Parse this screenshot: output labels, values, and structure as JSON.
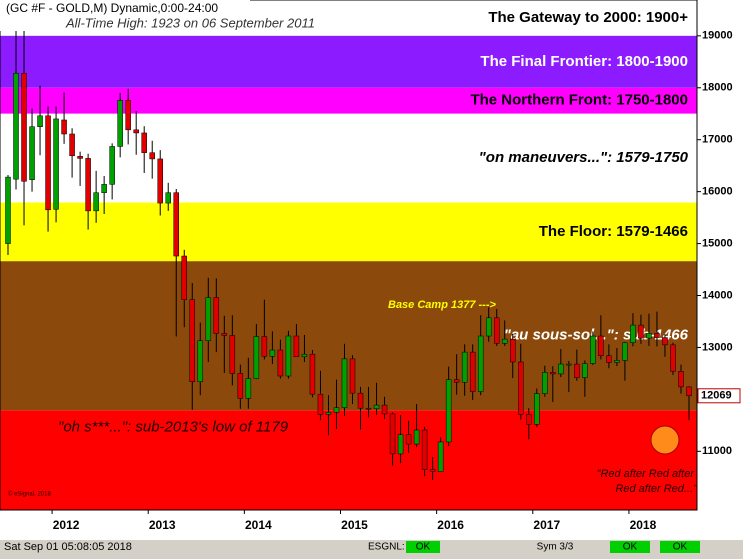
{
  "chart_data": {
    "type": "candlestick",
    "header": "(GC #F - GOLD,M) Dynamic,0:00-24:00",
    "subtitle": "All-Time High:  1923 on 06 September 2011",
    "categories": [
      null,
      null,
      null,
      null,
      null,
      null,
      "2012",
      null,
      null,
      null,
      null,
      null,
      null,
      null,
      null,
      null,
      null,
      null,
      "2013",
      null,
      null,
      null,
      null,
      null,
      null,
      null,
      null,
      null,
      null,
      null,
      "2014",
      null,
      null,
      null,
      null,
      null,
      null,
      null,
      null,
      null,
      null,
      null,
      "2015",
      null,
      null,
      null,
      null,
      null,
      null,
      null,
      null,
      null,
      null,
      null,
      "2016",
      null,
      null,
      null,
      null,
      null,
      null,
      null,
      null,
      null,
      null,
      null,
      "2017",
      null,
      null,
      null,
      null,
      null,
      null,
      null,
      null,
      null,
      null,
      null,
      "2018",
      null,
      null,
      null,
      null,
      null,
      null,
      null
    ],
    "open": [
      1500,
      1624,
      1828,
      1623,
      1725,
      1746,
      1566,
      1738,
      1711,
      1668,
      1664,
      1563,
      1598,
      1614,
      1687,
      1776,
      1719,
      1713,
      1675,
      1663,
      1578,
      1598,
      1476,
      1392,
      1234,
      1313,
      1396,
      1327,
      1323,
      1250,
      1202,
      1240,
      1321,
      1283,
      1295,
      1245,
      1322,
      1282,
      1287,
      1210,
      1171,
      1175,
      1184,
      1278,
      1212,
      1183,
      1182,
      1189,
      1172,
      1095,
      1132,
      1114,
      1141,
      1065,
      1061,
      1118,
      1238,
      1233,
      1291,
      1215,
      1322,
      1357,
      1308,
      1316,
      1272,
      1171,
      1152,
      1211,
      1252,
      1249,
      1268,
      1268,
      1242,
      1269,
      1322,
      1284,
      1271,
      1275,
      1309,
      1343,
      1318,
      1327,
      1319,
      1305,
      1254,
      1224
    ],
    "high": [
      1632,
      1911,
      1923,
      1760,
      1804,
      1764,
      1764,
      1791,
      1722,
      1677,
      1673,
      1640,
      1630,
      1693,
      1790,
      1798,
      1755,
      1726,
      1698,
      1680,
      1617,
      1605,
      1488,
      1424,
      1348,
      1434,
      1433,
      1361,
      1362,
      1267,
      1280,
      1345,
      1392,
      1331,
      1315,
      1332,
      1345,
      1324,
      1295,
      1255,
      1208,
      1238,
      1307,
      1285,
      1224,
      1224,
      1232,
      1205,
      1175,
      1170,
      1159,
      1191,
      1147,
      1089,
      1127,
      1263,
      1287,
      1306,
      1306,
      1362,
      1377,
      1374,
      1352,
      1326,
      1307,
      1183,
      1221,
      1265,
      1264,
      1297,
      1274,
      1296,
      1275,
      1331,
      1362,
      1306,
      1299,
      1310,
      1366,
      1363,
      1365,
      1369,
      1326,
      1309,
      1267,
      1225
    ],
    "low": [
      1478,
      1604,
      1535,
      1600,
      1670,
      1523,
      1541,
      1692,
      1627,
      1611,
      1527,
      1540,
      1557,
      1585,
      1666,
      1691,
      1671,
      1636,
      1625,
      1554,
      1563,
      1321,
      1339,
      1180,
      1208,
      1272,
      1291,
      1251,
      1227,
      1182,
      1182,
      1239,
      1277,
      1268,
      1240,
      1240,
      1285,
      1272,
      1204,
      1160,
      1131,
      1143,
      1168,
      1191,
      1142,
      1165,
      1170,
      1162,
      1072,
      1077,
      1097,
      1108,
      1052,
      1045,
      1062,
      1110,
      1209,
      1207,
      1199,
      1208,
      1311,
      1303,
      1303,
      1241,
      1161,
      1123,
      1147,
      1205,
      1195,
      1243,
      1214,
      1236,
      1205,
      1266,
      1277,
      1260,
      1264,
      1236,
      1302,
      1307,
      1303,
      1302,
      1282,
      1247,
      1211,
      1160
    ],
    "close": [
      1628,
      1828,
      1620,
      1725,
      1746,
      1565,
      1740,
      1711,
      1669,
      1664,
      1563,
      1598,
      1614,
      1687,
      1776,
      1719,
      1713,
      1675,
      1663,
      1578,
      1598,
      1476,
      1392,
      1234,
      1313,
      1396,
      1327,
      1323,
      1250,
      1202,
      1240,
      1321,
      1283,
      1295,
      1245,
      1322,
      1282,
      1287,
      1210,
      1171,
      1175,
      1184,
      1278,
      1212,
      1183,
      1182,
      1189,
      1172,
      1095,
      1132,
      1114,
      1141,
      1065,
      1061,
      1118,
      1238,
      1233,
      1291,
      1215,
      1322,
      1357,
      1308,
      1316,
      1272,
      1171,
      1152,
      1211,
      1252,
      1249,
      1268,
      1268,
      1242,
      1269,
      1322,
      1284,
      1271,
      1275,
      1309,
      1343,
      1318,
      1327,
      1319,
      1305,
      1254,
      1224,
      1206.9
    ],
    "last_label": "12069",
    "up_color": "#00a000",
    "down_color": "#e00000",
    "ylim": [
      987,
      1969
    ],
    "yticks": [
      {
        "value": 1100,
        "label": "11000"
      },
      {
        "value": 1200,
        "label": "12000"
      },
      {
        "value": 1300,
        "label": "13000"
      },
      {
        "value": 1400,
        "label": "14000"
      },
      {
        "value": 1500,
        "label": "15000"
      },
      {
        "value": 1600,
        "label": "16000"
      },
      {
        "value": 1700,
        "label": "17000"
      },
      {
        "value": 1800,
        "label": "18000"
      },
      {
        "value": 1900,
        "label": "19000"
      }
    ],
    "bands": [
      {
        "from": 1900,
        "to": 1969,
        "color": "#ffffff",
        "label": "The Gateway to 2000:  1900+",
        "label_color": "#000000"
      },
      {
        "from": 1800,
        "to": 1900,
        "color": "#8c1cff",
        "label": "The Final Frontier:  1800-1900",
        "label_color": "#ffffff"
      },
      {
        "from": 1750,
        "to": 1800,
        "color": "#ff00ff",
        "label": "The Northern Front:  1750-1800",
        "label_color": "#000000"
      },
      {
        "from": 1579,
        "to": 1750,
        "color": "#ffffff",
        "label": "\"on maneuvers...\":  1579-1750",
        "label_color": "#000000"
      },
      {
        "from": 1466,
        "to": 1579,
        "color": "#ffff00",
        "label": "The Floor:  1579-1466",
        "label_color": "#000000"
      },
      {
        "from": 1179,
        "to": 1466,
        "color": "#8b4a0c",
        "label": "\"au sous-sol...\":  sub-1466",
        "label_color": "#ffffff"
      },
      {
        "from": 987,
        "to": 1179,
        "color": "#ff0000",
        "label": "\"oh s***...\":  sub-2013's low of 1179",
        "label_color": "#1a0000"
      }
    ],
    "annotations": [
      "Base Camp 1377 --->",
      "\"Red after Red after",
      "Red after Red...\"",
      "© eSignal, 2018"
    ]
  },
  "status_bar": {
    "time": "Sat Sep 01 05:08:05 2018",
    "feed": "ESGNL:",
    "feed_status": "OK",
    "symbols": "Sym 3/3",
    "status_2": "OK",
    "status_3": "OK"
  }
}
